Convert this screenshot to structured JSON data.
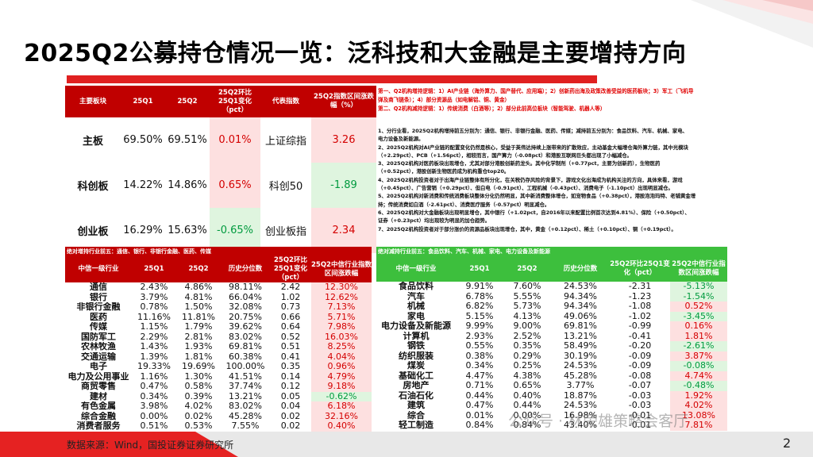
{
  "title": "2025Q2公募持仓情况一览：泛科技和大金融是主要增持方向",
  "top_table": {
    "headers": [
      "主要板块",
      "25Q1",
      "25Q2",
      "25Q2环比25Q1变化（pct）",
      "代表指数",
      "25Q2指数区间涨跌幅（%）"
    ],
    "rows": [
      [
        "主板",
        "69.50%",
        "69.51%",
        "0.01%",
        "上证综指",
        "3.26"
      ],
      [
        "科创板",
        "14.22%",
        "14.86%",
        "0.65%",
        "科创50",
        "-1.89"
      ],
      [
        "创业板",
        "16.29%",
        "15.63%",
        "-0.65%",
        "创业板指",
        "2.34"
      ]
    ]
  },
  "notes_head": [
    "第一、Q2机构增持逻辑：1）AI产业链（海外算力、国产替代、应用端）；2）创新药出海及政策改善受益的医药板块；3）军工（飞机导",
    "弹及商飞链条）；4）部分资源品（如电解铝、铜、黄金）",
    "第二、Q2机构减持逻辑：1）传统消费（白酒等）；2）部分此前高位板块（智能驾驶、机器人等）"
  ],
  "notes": [
    "1、分行业看，2025Q2机构增持前五分别为：通信、银行、非银行金融、医药、传媒；减持前五分别为：食品饮料、汽车、机械、家电、",
    "电力设备及新能源。",
    "2、2025Q2机构对AI产业链的配置变化仍然是核心，受益于英伟达持续上涨带来的扩散效应，主动基金大幅增仓海外算力链，其中光模块",
    "（+2.29pct）、PCB（+1.56pct），相较而言，国产算力（-0.08pct）和港股互联网巨头都出现了小幅减仓。",
    "3、2025Q2机构对医药板块出现增仓，尤其对部分港股创新药龙头。其中化学制剂（+0.77pct，主要为创新药），生物医药",
    "（+0.52pct），港股创新生物医药成为机构重仓top20。",
    "4、2025Q2机构投资者对于出海产业链整体有所分化，在关税仍存风险的背景下，游戏文化出海成为机构关注的方向，具体来看，游戏",
    "（+0.45pct）、广告营销（+0.29pct）、但白电（-0.91pct）、工程机械（-0.43pct）、消费电子（-1.10pct）出现明显减仓。",
    "5、2025Q2机构对新消费和传统消费板块整体分化仍然明显，其中新消费整体增仓，如宠物食品（+0.38pct），港股泡泡玛特、老铺黄金增",
    "持；传统消费如白酒（-2.61pct）、消费医疗服务（-0.57pct）明显减仓。",
    "6、2025Q2机构对大金融板块出现明显增仓，其中银行（+1.02pct，自2016年以来配置比例首次达到4.81%）、保险（+0.50pct）、",
    "证券（+0.23pct）均出现较为明显的加仓趋势。",
    "7、2025Q2机构投资者对于部分涨价的资源品板块出现增仓，其中，黄金（+0.12pct）、稀土（+0.10pct）、铜（+0.19pct）。"
  ],
  "left_bar": "绝对增持行业前五：通信、银行、非银行金融、医药、传媒",
  "right_bar": "绝对减持行业前五：食品饮料、汽车、机械、家电、电力设备及新能源",
  "bottom_headers": [
    "中信一级行业",
    "25Q1",
    "25Q2",
    "历史分位数",
    "25Q2环比25Q1变化（pct）",
    "25Q2中信行业指数区间涨跌幅"
  ],
  "right_headers": [
    "中信一级行业",
    "25Q1",
    "25Q2",
    "历史分位数",
    "25Q2环比25Q1变化（pct）",
    "25Q2中信行业指数区间涨跌幅"
  ],
  "left_rows": [
    [
      "通信",
      "2.43%",
      "4.86%",
      "98.11%",
      "2.42",
      "12.30%"
    ],
    [
      "银行",
      "3.79%",
      "4.81%",
      "66.04%",
      "1.02",
      "12.62%"
    ],
    [
      "非银行金融",
      "0.78%",
      "1.50%",
      "32.08%",
      "0.73",
      "7.13%"
    ],
    [
      "医药",
      "11.16%",
      "11.81%",
      "20.75%",
      "0.66",
      "5.71%"
    ],
    [
      "传媒",
      "1.15%",
      "1.79%",
      "39.62%",
      "0.64",
      "7.98%"
    ],
    [
      "国防军工",
      "2.29%",
      "2.81%",
      "83.02%",
      "0.52",
      "16.03%"
    ],
    [
      "农林牧渔",
      "1.43%",
      "1.93%",
      "69.81%",
      "0.51",
      "8.25%"
    ],
    [
      "交通运输",
      "1.39%",
      "1.81%",
      "60.38%",
      "0.41",
      "4.04%"
    ],
    [
      "电子",
      "19.33%",
      "19.69%",
      "100.00%",
      "0.35",
      "0.96%"
    ],
    [
      "电力及公用事业",
      "1.16%",
      "1.30%",
      "41.51%",
      "0.14",
      "4.79%"
    ],
    [
      "商贸零售",
      "0.47%",
      "0.58%",
      "37.74%",
      "0.12",
      "9.18%"
    ],
    [
      "建材",
      "0.34%",
      "0.39%",
      "13.21%",
      "0.05",
      "-0.62%"
    ],
    [
      "有色金属",
      "3.98%",
      "4.02%",
      "83.02%",
      "0.04",
      "6.18%"
    ],
    [
      "综合金融",
      "0.00%",
      "0.02%",
      "45.28%",
      "0.02",
      "32.16%"
    ],
    [
      "消费者服务",
      "0.51%",
      "0.53%",
      "7.55%",
      "0.02",
      "0.40%"
    ]
  ],
  "right_rows": [
    [
      "食品饮料",
      "9.91%",
      "7.60%",
      "24.53%",
      "-2.31",
      "-5.13%"
    ],
    [
      "汽车",
      "6.78%",
      "5.55%",
      "94.34%",
      "-1.23",
      "-1.54%"
    ],
    [
      "机械",
      "6.82%",
      "5.73%",
      "94.34%",
      "-1.08",
      "0.52%"
    ],
    [
      "家电",
      "5.15%",
      "4.13%",
      "49.06%",
      "-1.02",
      "-3.45%"
    ],
    [
      "电力设备及新能源",
      "9.99%",
      "9.00%",
      "69.81%",
      "-0.99",
      "0.16%"
    ],
    [
      "计算机",
      "2.93%",
      "2.52%",
      "13.21%",
      "-0.41",
      "1.81%"
    ],
    [
      "钢铁",
      "0.55%",
      "0.35%",
      "58.49%",
      "-0.20",
      "-2.61%"
    ],
    [
      "纺织服装",
      "0.38%",
      "0.29%",
      "30.19%",
      "-0.09",
      "3.87%"
    ],
    [
      "煤炭",
      "0.34%",
      "0.25%",
      "24.53%",
      "-0.09",
      "-0.08%"
    ],
    [
      "基础化工",
      "4.47%",
      "4.38%",
      "45.28%",
      "-0.08",
      "4.74%"
    ],
    [
      "房地产",
      "0.71%",
      "0.65%",
      "3.77%",
      "-0.07",
      "-0.48%"
    ],
    [
      "石油石化",
      "0.44%",
      "0.40%",
      "18.87%",
      "-0.03",
      "1.92%"
    ],
    [
      "建筑",
      "0.47%",
      "0.44%",
      "24.53%",
      "-0.03",
      "4.02%"
    ],
    [
      "综合",
      "0.01%",
      "0.00%",
      "16.98%",
      "-0.01",
      "13.08%"
    ],
    [
      "轻工制造",
      "0.84%",
      "0.84%",
      "43.40%",
      "-0.01",
      "7.81%"
    ]
  ],
  "source": "数据来源：Wind，国投证券证券研究所",
  "watermark": "公众号 · 林荣雄策略会客厅",
  "page_number": "2",
  "colors": {
    "red": "#c00000",
    "green_header": "#3dbf3d",
    "pink_cell": "#fde0e0",
    "green_cell": "#dff5df"
  }
}
